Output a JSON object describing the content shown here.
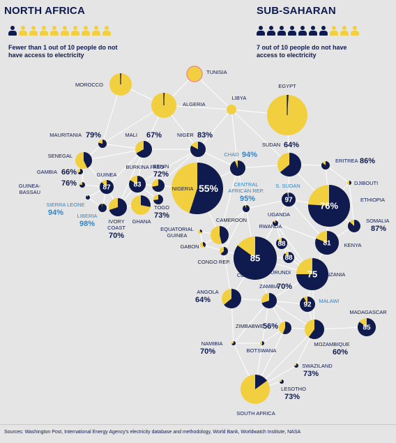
{
  "colors": {
    "navy": "#0f1a4e",
    "yellow": "#f2cf3f",
    "blue": "#2f86c7",
    "line": "#ffffff",
    "bg": "#e5e5e5",
    "tunisia_ring": "#ef8c6b"
  },
  "headers": {
    "north": {
      "title": "NORTH AFRICA",
      "text_line1": "Fewer than 1 out of 10 people do not",
      "text_line2": "have access to electricity"
    },
    "south": {
      "title": "SUB-SAHARAN",
      "text_line1": "7 out of 10 people do not have",
      "text_line2": "access to electricity"
    }
  },
  "pictograms": {
    "north_dark": 1,
    "north_total": 10,
    "south_dark": 7,
    "south_total": 10
  },
  "footer": "Sources: Washington Post, International Energy Agency's electricity database and methodology, World Bank, Worldwatch Institute, NASA",
  "chart_data": {
    "type": "network-pie",
    "value_meaning": "percent of people without access to electricity",
    "countries": [
      {
        "name": "MOROCCO",
        "value": 1
      },
      {
        "name": "TUNISIA",
        "value": 0
      },
      {
        "name": "ALGERIA",
        "value": 1
      },
      {
        "name": "LIBYA",
        "value": 0
      },
      {
        "name": "EGYPT",
        "value": 1
      },
      {
        "name": "MAURITANIA",
        "pct": "79%",
        "value": 79
      },
      {
        "name": "MALI",
        "pct": "67%",
        "value": 67
      },
      {
        "name": "NIGER",
        "pct": "83%",
        "value": 83
      },
      {
        "name": "CHAD",
        "pct": "94%",
        "value": 94
      },
      {
        "name": "SUDAN",
        "pct": "64%",
        "value": 64
      },
      {
        "name": "ERITREA",
        "pct": "86%",
        "value": 86
      },
      {
        "name": "DJIBOUTI",
        "value": 50
      },
      {
        "name": "SENEGAL",
        "value": 43
      },
      {
        "name": "GAMBIA",
        "pct": "66%",
        "value": 66
      },
      {
        "name": "GUINEA-BASSAU",
        "pct": "76%",
        "value": 76
      },
      {
        "name": "GUINEA",
        "inner": "87",
        "value": 87
      },
      {
        "name": "BURKINA FASO",
        "inner": "83",
        "value": 83
      },
      {
        "name": "BENIN",
        "pct": "72%",
        "value": 72
      },
      {
        "name": "NIGERIA",
        "inner": "55%",
        "value": 55
      },
      {
        "name": "SIERRA LEONE",
        "pct": "94%",
        "value": 94
      },
      {
        "name": "LIBERIA",
        "pct": "98%",
        "value": 98
      },
      {
        "name": "IVORY COAST",
        "pct": "70%",
        "value": 70
      },
      {
        "name": "GHANA",
        "value": 28
      },
      {
        "name": "TOGO",
        "pct": "73%",
        "value": 73
      },
      {
        "name": "CENTRAL AFRICAN REP.",
        "pct": "95%",
        "value": 95
      },
      {
        "name": "S. SUDAN",
        "inner": "97",
        "value": 97
      },
      {
        "name": "ETHIOPIA",
        "inner": "76%",
        "value": 76
      },
      {
        "name": "SOMALIA",
        "pct": "87%",
        "value": 87
      },
      {
        "name": "CAMEROON",
        "value": 46
      },
      {
        "name": "EQUATORIAL GUINEA",
        "value": 34
      },
      {
        "name": "GABON",
        "value": 40
      },
      {
        "name": "CONGO REP.",
        "value": 63
      },
      {
        "name": "UGANDA",
        "value": 88
      },
      {
        "name": "RWANDA",
        "inner": "88",
        "value": 88
      },
      {
        "name": "BURUNDI",
        "inner": "88",
        "value": 88
      },
      {
        "name": "KENYA",
        "inner": "81",
        "value": 81
      },
      {
        "name": "CONGO",
        "inner": "85",
        "value": 85
      },
      {
        "name": "TANZANIA",
        "inner": "75",
        "value": 75
      },
      {
        "name": "ZAMBIA",
        "pct": "70%",
        "value": 70
      },
      {
        "name": "MALAWI",
        "inner": "92",
        "value": 92
      },
      {
        "name": "ANGOLA",
        "pct": "64%",
        "value": 64
      },
      {
        "name": "MADAGASCAR",
        "inner": "85",
        "value": 85
      },
      {
        "name": "ZIMBABWE",
        "pct": "56%",
        "value": 56
      },
      {
        "name": "MOZAMBIQUE",
        "pct": "60%",
        "value": 60
      },
      {
        "name": "NAMIBIA",
        "pct": "70%",
        "value": 70
      },
      {
        "name": "BOTSWANA",
        "value": 53
      },
      {
        "name": "SWAZILAND",
        "pct": "73%",
        "value": 73
      },
      {
        "name": "LESOTHO",
        "pct": "73%",
        "value": 73
      },
      {
        "name": "SOUTH AFRICA",
        "value": 15
      }
    ]
  }
}
